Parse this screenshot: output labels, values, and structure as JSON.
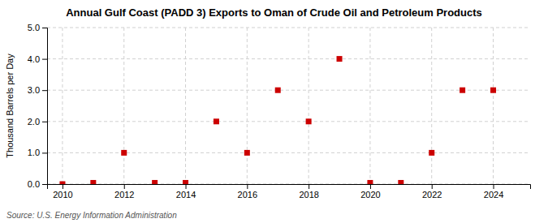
{
  "chart_data": {
    "type": "scatter",
    "title": "Annual Gulf Coast (PADD 3) Exports to Oman of Crude Oil and Petroleum Products",
    "ylabel": "Thousand Barrels per Day",
    "source": "Source: U.S. Energy Information Administration",
    "x": [
      2010,
      2011,
      2012,
      2013,
      2014,
      2015,
      2016,
      2017,
      2018,
      2019,
      2020,
      2021,
      2022,
      2023,
      2024
    ],
    "y": [
      0.0,
      0.04,
      1.0,
      0.04,
      0.04,
      2.0,
      1.0,
      3.0,
      2.0,
      4.0,
      0.04,
      0.04,
      1.0,
      3.0,
      3.0
    ],
    "color": "#cc0000",
    "marker": "square",
    "xlim": [
      2009.5,
      2025.2
    ],
    "ylim": [
      0.0,
      5.0
    ],
    "xticks": [
      2010,
      2012,
      2014,
      2016,
      2018,
      2020,
      2022,
      2024
    ],
    "yticks": [
      {
        "value": 0.0,
        "label": "0.0"
      },
      {
        "value": 1.0,
        "label": "1.0"
      },
      {
        "value": 2.0,
        "label": "2.0"
      },
      {
        "value": 3.0,
        "label": "3.0"
      },
      {
        "value": 4.0,
        "label": "4.0"
      },
      {
        "value": 5.0,
        "label": "5.0"
      }
    ],
    "grid": true
  }
}
